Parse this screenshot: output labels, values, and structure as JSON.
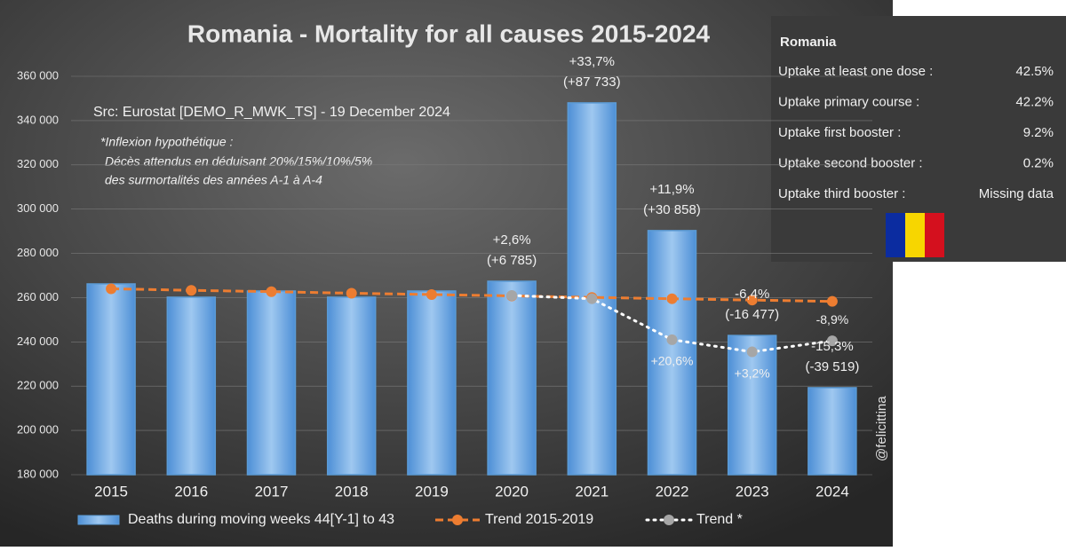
{
  "chart_data": {
    "type": "bar",
    "title": "Romania - Mortality for all causes 2015-2024",
    "source": "Src: Eurostat [DEMO_R_MWK_TS] - 19 December 2024",
    "note": [
      "*Inflexion hypothétique :",
      "Décès attendus en déduisant 20%/15%/10%/5%",
      "des surmortalités des années A-1 à A-4"
    ],
    "watermark": "@felicittina",
    "categories": [
      "2015",
      "2016",
      "2017",
      "2018",
      "2019",
      "2020",
      "2021",
      "2022",
      "2023",
      "2024"
    ],
    "series": [
      {
        "name": "Deaths during moving weeks 44[Y-1] to 43",
        "type": "bar",
        "color": "#5b9bd5",
        "values": [
          266200,
          260200,
          263000,
          260200,
          263000,
          267400,
          348000,
          290300,
          242900,
          219300
        ]
      },
      {
        "name": "Trend 2015-2019",
        "type": "line",
        "color": "#ed7d31",
        "values": [
          264000,
          263300,
          262700,
          262000,
          261400,
          260800,
          260100,
          259500,
          258900,
          258300
        ]
      },
      {
        "name": "Trend *",
        "type": "line",
        "color": "#ffffff",
        "values": [
          null,
          null,
          null,
          null,
          null,
          261000,
          259500,
          241000,
          235500,
          240500
        ]
      }
    ],
    "bar_labels": [
      null,
      null,
      null,
      null,
      null,
      [
        "+2,6%",
        "(+6 785)"
      ],
      [
        "+33,7%",
        "(+87 733)"
      ],
      [
        "+11,9%",
        "(+30 858)"
      ],
      [
        "-6,4%",
        "(-16 477)"
      ],
      [
        "-15,3%",
        "(-39 519)"
      ]
    ],
    "trend_labels": [
      null,
      null,
      null,
      null,
      null,
      null,
      null,
      "+20,6%",
      "+3,2%",
      "-8,9%"
    ],
    "ylim": [
      180000,
      370000
    ],
    "yticks": [
      {
        "value": 180000,
        "label": "180 000"
      },
      {
        "value": 200000,
        "label": "200 000"
      },
      {
        "value": 220000,
        "label": "220 000"
      },
      {
        "value": 240000,
        "label": "240 000"
      },
      {
        "value": 260000,
        "label": "260 000"
      },
      {
        "value": 280000,
        "label": "280 000"
      },
      {
        "value": 300000,
        "label": "300 000"
      },
      {
        "value": 320000,
        "label": "320 000"
      },
      {
        "value": 340000,
        "label": "340 000"
      },
      {
        "value": 360000,
        "label": "360 000"
      }
    ],
    "grid": true,
    "legend": "bottom"
  },
  "panel": {
    "title": "Romania",
    "rows": [
      {
        "label": "Uptake at least one dose :",
        "value": "42.5%"
      },
      {
        "label": "Uptake primary course :",
        "value": "42.2%"
      },
      {
        "label": "Uptake first booster :",
        "value": "9.2%"
      },
      {
        "label": "Uptake second booster :",
        "value": "0.2%"
      },
      {
        "label": "Uptake third booster :",
        "value": "Missing data"
      }
    ]
  }
}
